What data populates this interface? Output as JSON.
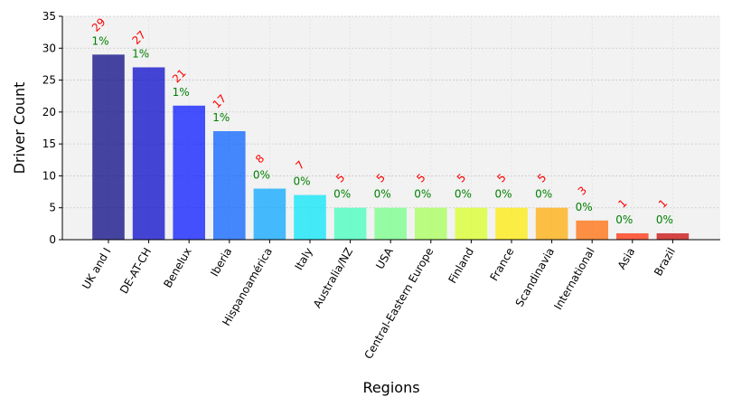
{
  "chart_data": {
    "type": "bar",
    "xlabel": "Regions",
    "ylabel": "Driver Count",
    "ylim": [
      0,
      35
    ],
    "yticks": [
      0,
      5,
      10,
      15,
      20,
      25,
      30,
      35
    ],
    "grid": true,
    "categories": [
      "UK and I",
      "DE-AT-CH",
      "Benelux",
      "Iberia",
      "Hispanoamérica",
      "Italy",
      "Australia/NZ",
      "USA",
      "Central-Eastern Europe",
      "Finland",
      "France",
      "Scandinavia",
      "International",
      "Asia",
      "Brazil"
    ],
    "values": [
      29,
      27,
      21,
      17,
      8,
      7,
      5,
      5,
      5,
      5,
      5,
      5,
      3,
      1,
      1
    ],
    "count_labels": [
      "29",
      "27",
      "21",
      "17",
      "8",
      "7",
      "5",
      "5",
      "5",
      "5",
      "5",
      "5",
      "3",
      "1",
      "1"
    ],
    "percent_labels": [
      "1%",
      "1%",
      "1%",
      "1%",
      "0%",
      "0%",
      "0%",
      "0%",
      "0%",
      "0%",
      "0%",
      "0%",
      "0%",
      "0%",
      "0%"
    ],
    "colors": [
      "#000080",
      "#0000c8",
      "#0010ff",
      "#005cff",
      "#00a4ff",
      "#00e4f8",
      "#3cffba",
      "#72ff84",
      "#a4ff52",
      "#d8ff1e",
      "#ffea00",
      "#ffaa00",
      "#ff6800",
      "#ff2800",
      "#c80000"
    ],
    "background": "#f2f2f2"
  }
}
